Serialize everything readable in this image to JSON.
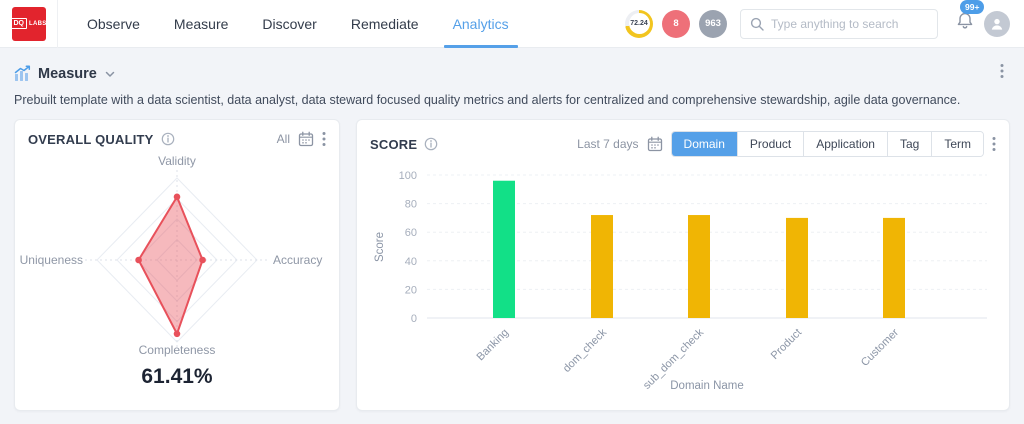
{
  "topbar": {
    "logo": {
      "line1": "DQ",
      "line2": "LABS"
    },
    "nav": [
      {
        "label": "Observe",
        "active": false
      },
      {
        "label": "Measure",
        "active": false
      },
      {
        "label": "Discover",
        "active": false
      },
      {
        "label": "Remediate",
        "active": false
      },
      {
        "label": "Analytics",
        "active": true
      }
    ],
    "badges": {
      "score": "72.24",
      "score_pct": 72.24,
      "alerts": "8",
      "items": "963"
    },
    "search_placeholder": "Type anything to search",
    "notifications": "99+"
  },
  "section": {
    "title": "Measure",
    "description": "Prebuilt template with a data scientist, data analyst, data steward focused quality metrics and alerts for centralized and comprehensive stewardship, agile data governance."
  },
  "quality_card": {
    "title": "OVERALL QUALITY",
    "range_label": "All",
    "overall_score": "61.41%"
  },
  "score_card": {
    "title": "SCORE",
    "range_label": "Last 7 days",
    "tabs": [
      {
        "label": "Domain",
        "active": true
      },
      {
        "label": "Product",
        "active": false
      },
      {
        "label": "Application",
        "active": false
      },
      {
        "label": "Tag",
        "active": false
      },
      {
        "label": "Term",
        "active": false
      }
    ]
  },
  "colors": {
    "accent_blue": "#55a0e8",
    "radar_red": "#e8515b",
    "bar_green": "#12e087",
    "bar_yellow": "#f0b504",
    "logo_red": "#e2242d",
    "ring_yellow": "#f2c51f"
  },
  "chart_data": [
    {
      "type": "radar",
      "title": "OVERALL QUALITY",
      "indicators": [
        "Validity",
        "Accuracy",
        "Completeness",
        "Uniqueness"
      ],
      "values": [
        77,
        32,
        90,
        48
      ],
      "max": 100,
      "overall": "61.41%",
      "color": "#e8515b",
      "rings": [
        25,
        50,
        75,
        100
      ]
    },
    {
      "type": "bar",
      "title": "SCORE",
      "categories": [
        "Banking",
        "dom_check",
        "sub_dom_check",
        "Product",
        "Customer"
      ],
      "values": [
        96,
        72,
        72,
        70,
        70
      ],
      "colors": [
        "#12e087",
        "#f0b504",
        "#f0b504",
        "#f0b504",
        "#f0b504"
      ],
      "xlabel": "Domain Name",
      "ylabel": "Score",
      "ylim": [
        0,
        100
      ],
      "yticks": [
        0,
        20,
        40,
        60,
        80,
        100
      ],
      "grid": true,
      "legend": false
    }
  ]
}
